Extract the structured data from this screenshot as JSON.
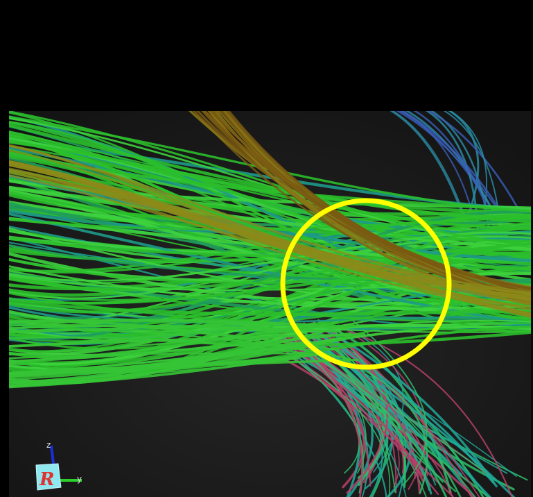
{
  "orientation_widget": {
    "z_label": "z",
    "y_label": "y",
    "face_letter": "R",
    "colors": {
      "z": "#1a2fd8",
      "y": "#2bd02b",
      "face": "#8fe8f0",
      "letter": "#e03030"
    }
  },
  "highlight": {
    "shape": "circle",
    "color": "#ffff00"
  },
  "tract_colors": [
    "#2bbf2b",
    "#1fa34a",
    "#3cc63c",
    "#8a7a18",
    "#1d9a8a",
    "#3a5fb8",
    "#c0406a",
    "#2ab0a0"
  ]
}
